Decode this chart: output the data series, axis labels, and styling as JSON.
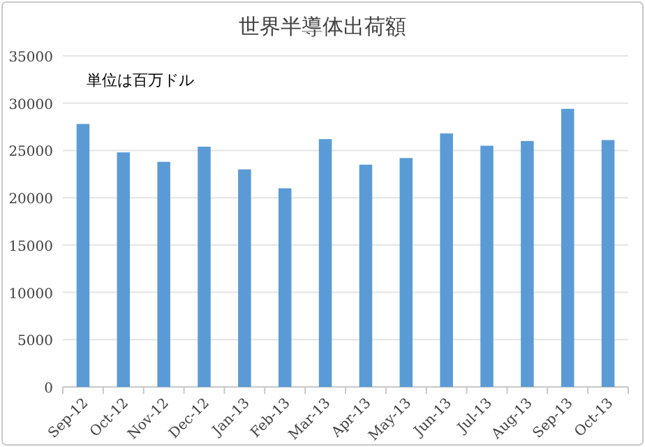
{
  "chart_data": {
    "type": "bar",
    "title": "世界半導体出荷額",
    "annotations": [
      "単位は百万ドル"
    ],
    "categories": [
      "Sep-12",
      "Oct-12",
      "Nov-12",
      "Dec-12",
      "Jan-13",
      "Feb-13",
      "Mar-13",
      "Apr-13",
      "May-13",
      "Jun-13",
      "Jul-13",
      "Aug-13",
      "Sep-13",
      "Oct-13"
    ],
    "values": [
      27800,
      24800,
      23800,
      25400,
      23000,
      21000,
      26200,
      23500,
      24200,
      26800,
      25500,
      26000,
      29400,
      26100
    ],
    "color": "#5b9bd5",
    "ylim": [
      0,
      35000
    ],
    "yticks": [
      0,
      5000,
      10000,
      15000,
      20000,
      25000,
      30000,
      35000
    ],
    "grid": "y"
  }
}
